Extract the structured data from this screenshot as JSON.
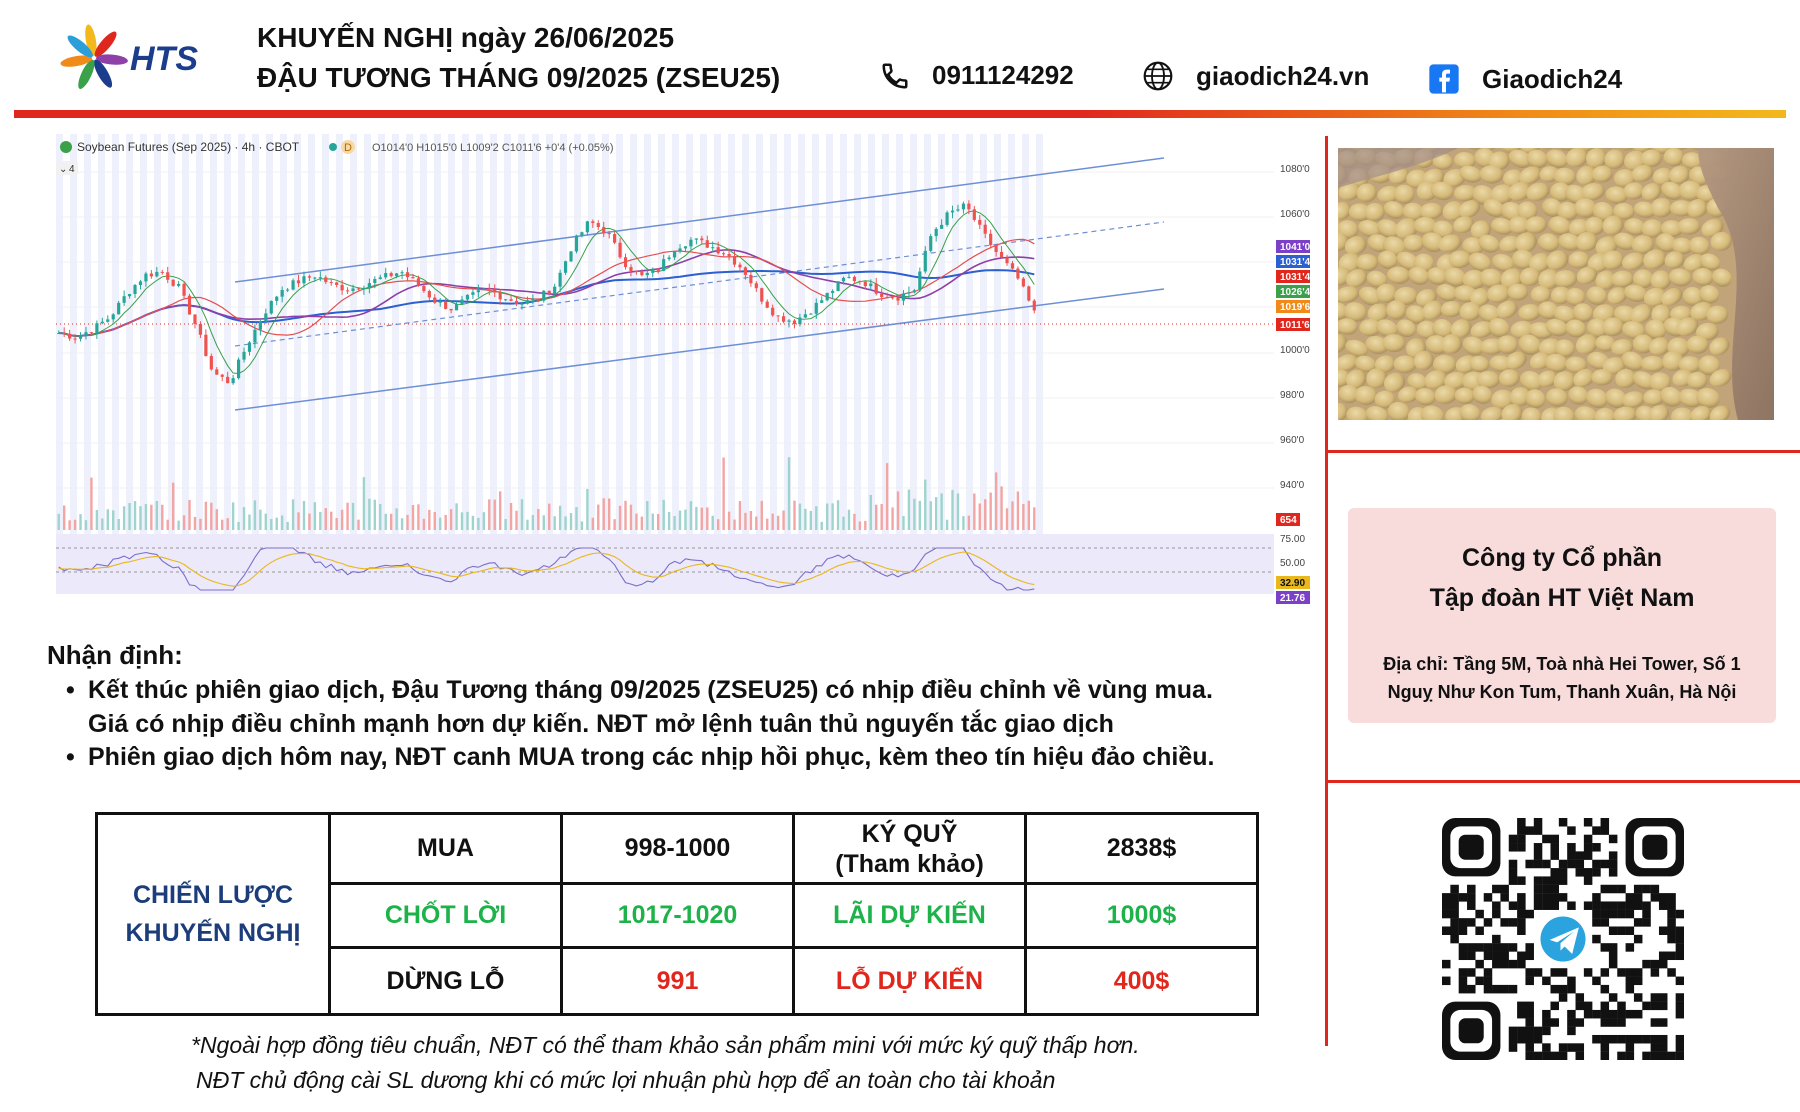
{
  "header": {
    "logo_text": "HTS",
    "title_line1": "KHUYẾN NGHỊ ngày 26/06/2025",
    "title_line2": "ĐẬU TƯƠNG THÁNG 09/2025 (ZSEU25)",
    "phone": "0911124292",
    "website": "giaodich24.vn",
    "facebook": "Giaodich24",
    "icons": [
      "phone-icon",
      "globe-icon",
      "facebook-icon"
    ]
  },
  "chart": {
    "instrument_label": "Soybean Futures (Sep 2025) · 4h · CBOT",
    "mode_badge": "D",
    "ohlc_text": "O1014'0 H1015'0 L1009'2 C1011'6 +0'4 (+0.05%)",
    "indicator_count": "4",
    "price_axis": [
      "1080'0",
      "1060'0",
      "1000'0",
      "980'0",
      "960'0",
      "940'0"
    ],
    "price_tags": [
      {
        "label": "1041'0",
        "color": "#7b3fc8"
      },
      {
        "label": "1031'4",
        "color": "#2c5fd0"
      },
      {
        "label": "1031'4",
        "color": "#e0271d"
      },
      {
        "label": "1026'4",
        "color": "#3aa04a"
      },
      {
        "label": "1019'6",
        "color": "#f08a18"
      },
      {
        "label": "1011'6",
        "color": "#e0271d"
      }
    ],
    "volume_tag": {
      "label": "654",
      "color": "#e0271d"
    },
    "rsi_axis": [
      "75.00",
      "50.00"
    ],
    "rsi_tags": [
      {
        "label": "32.90",
        "color": "#e8b81c"
      },
      {
        "label": "21.76",
        "color": "#7b3fc8"
      }
    ],
    "colors": {
      "up": "#26a69a",
      "down": "#ef5350",
      "channel": "#6d8fd6",
      "ma_blue": "#2c5fd0",
      "ma_purple": "#8e3fa8",
      "ma_red": "#e55050",
      "ma_green": "#3aa04a",
      "rsi": "#7b6fc8"
    }
  },
  "chart_data": {
    "type": "line",
    "title": "Soybean Futures (Sep 2025) · 4h · CBOT",
    "xlabel": "",
    "ylabel": "",
    "ylim": [
      920,
      1090
    ],
    "grid": true,
    "series": [
      {
        "values": [
          1002,
          1000,
          1004,
          1010,
          1022,
          1031,
          1033,
          1025,
          1006,
          982,
          977,
          996,
          1012,
          1024,
          1028,
          1031,
          1026,
          1024,
          1027,
          1030,
          1033,
          1026,
          1018,
          1014,
          1020,
          1024,
          1020,
          1017,
          1019,
          1026,
          1046,
          1058,
          1053,
          1038,
          1030,
          1034,
          1045,
          1049,
          1046,
          1042,
          1034,
          1020,
          1010,
          1008,
          1014,
          1022,
          1030,
          1028,
          1022,
          1020,
          1024,
          1052,
          1062,
          1066,
          1052,
          1040,
          1030,
          1012
        ]
      }
    ]
  },
  "soy_image": {
    "name": "soybeans-photo"
  },
  "company": {
    "name_line1": "Công ty Cổ phần",
    "name_line2": "Tập đoàn HT Việt Nam",
    "address_line1": "Địa chỉ: Tầng 5M, Toà nhà Hei Tower, Số 1",
    "address_line2": "Nguỵ Như Kon Tum, Thanh Xuân, Hà Nội"
  },
  "analysis": {
    "title": "Nhận định:",
    "bullet1_line1": "Kết thúc phiên giao dịch, Đậu Tương tháng 09/2025 (ZSEU25) có nhịp điều chỉnh về vùng mua.",
    "bullet1_line2": "Giá có nhịp điều chỉnh mạnh hơn dự kiến. NĐT mở lệnh tuân thủ nguyến tắc giao dịch",
    "bullet2": "Phiên giao dịch hôm nay, NĐT canh MUA trong các nhịp hồi phục, kèm theo tín hiệu đảo chiều.",
    "bullet_char": "•"
  },
  "strategy": {
    "label_line1": "CHIẾN LƯỢC",
    "label_line2": "KHUYẾN NGHỊ",
    "row1": {
      "c1": "MUA",
      "c2": "998-1000",
      "c3_line1": "KÝ QUỸ",
      "c3_line2": "(Tham khảo)",
      "c4": "2838$"
    },
    "row2": {
      "c1": "CHỐT LỜI",
      "c2": "1017-1020",
      "c3": "LÃI DỰ KIẾN",
      "c4": "1000$"
    },
    "row3": {
      "c1": "DỪNG LỖ",
      "c2": "991",
      "c3": "LỖ DỰ KIẾN",
      "c4": "400$"
    }
  },
  "notes": {
    "line1": "*Ngoài hợp đồng tiêu chuẩn, NĐT có thể tham khảo sản phẩm mini với mức ký quỹ thấp hơn.",
    "line2": "NĐT chủ động cài SL dương khi có mức lợi nhuận phù hợp để an toàn cho tài khoản"
  },
  "qr": {
    "name": "telegram-qr-code"
  }
}
